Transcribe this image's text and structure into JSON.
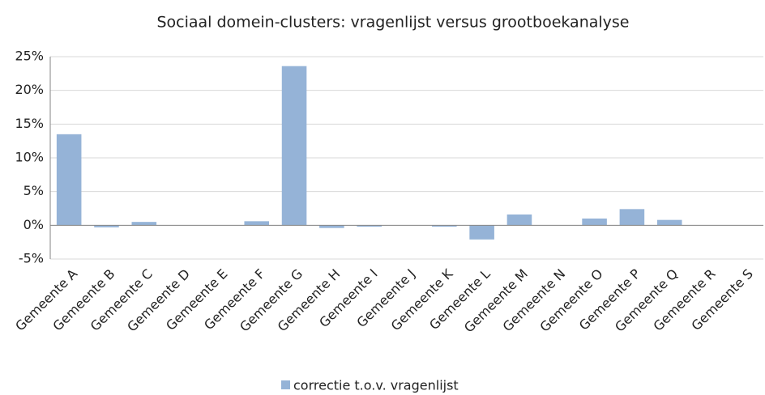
{
  "chart_data": {
    "type": "bar",
    "title": "Sociaal domein-clusters:  vragenlijst versus grootboekanalyse",
    "categories": [
      "Gemeente A",
      "Gemeente B",
      "Gemeente C",
      "Gemeente D",
      "Gemeente E",
      "Gemeente F",
      "Gemeente G",
      "Gemeente H",
      "Gemeente I",
      "Gemeente J",
      "Gemeente K",
      "Gemeente L",
      "Gemeente M",
      "Gemeente N",
      "Gemeente O",
      "Gemeente P",
      "Gemeente Q",
      "Gemeente R",
      "Gemeente S"
    ],
    "series": [
      {
        "name": "correctie t.o.v. vragenlijst",
        "color": "#95b3d7",
        "values": [
          13.5,
          -0.3,
          0.5,
          0,
          0,
          0.6,
          23.6,
          -0.4,
          -0.2,
          0,
          -0.2,
          -2.1,
          1.6,
          0,
          1.0,
          2.4,
          0.8,
          0,
          0
        ]
      }
    ],
    "ylim": [
      -5,
      25
    ],
    "yticks": [
      {
        "value": -5,
        "label": "-5%"
      },
      {
        "value": 0,
        "label": "0%"
      },
      {
        "value": 5,
        "label": "5%"
      },
      {
        "value": 10,
        "label": "10%"
      },
      {
        "value": 15,
        "label": "15%"
      },
      {
        "value": 20,
        "label": "20%"
      },
      {
        "value": 25,
        "label": "25%"
      }
    ],
    "grid": true,
    "legend": "bottom"
  }
}
